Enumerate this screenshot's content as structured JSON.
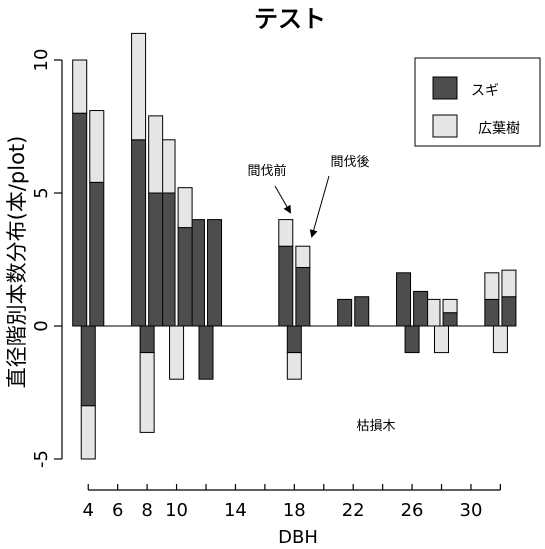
{
  "chart_data": {
    "type": "bar",
    "title": "テスト",
    "ylabel": "直径階別本数分布(本/plot)",
    "xlabel": "DBH",
    "ylim": [
      -5,
      10
    ],
    "yticks": [
      -5,
      0,
      5,
      10
    ],
    "xlim": [
      3.1,
      33.4
    ],
    "xticks": [
      4,
      6,
      8,
      10,
      14,
      18,
      22,
      26,
      30
    ],
    "xtick_marks": [
      4,
      6,
      8,
      10,
      12,
      14,
      16,
      18,
      20,
      22,
      24,
      26,
      28,
      30,
      32
    ],
    "colors": {
      "sugi": "#4d4d4d",
      "broadleaf": "#e6e6e6"
    },
    "legend": {
      "position": "top-right",
      "entries": [
        {
          "label": "スギ",
          "color": "#4d4d4d"
        },
        {
          "label": "広葉樹",
          "color": "#e6e6e6"
        }
      ]
    },
    "annotations": {
      "before": "間伐前",
      "after": "間伐後",
      "dead": "枯損木"
    },
    "series": [
      {
        "name": "間伐前",
        "x": [
          4,
          6,
          8,
          10,
          12,
          14,
          16,
          18,
          20,
          22,
          24,
          26,
          28,
          30,
          32
        ],
        "sugi": [
          8,
          0,
          7,
          5,
          4,
          0,
          0,
          3,
          0,
          1,
          0,
          2,
          0,
          0,
          1
        ],
        "broadleaf": [
          2,
          0,
          4,
          2,
          0,
          0,
          0,
          1,
          0,
          0,
          0,
          0,
          1,
          0,
          1
        ]
      },
      {
        "name": "間伐後",
        "x": [
          4,
          6,
          8,
          10,
          12,
          14,
          16,
          18,
          20,
          22,
          24,
          26,
          28,
          30,
          32
        ],
        "sugi": [
          5.4,
          0,
          5,
          3.7,
          4,
          0,
          0,
          2.2,
          0,
          1.1,
          0,
          1.3,
          0.5,
          0,
          1.1
        ],
        "broadleaf": [
          2.7,
          0,
          2.9,
          1.5,
          0,
          0,
          0,
          0.8,
          0,
          0,
          0,
          0,
          0.5,
          0,
          1
        ]
      },
      {
        "name": "枯損木",
        "x": [
          4,
          6,
          8,
          10,
          12,
          14,
          16,
          18,
          20,
          22,
          24,
          26,
          28,
          30,
          32
        ],
        "sugi": [
          -3,
          0,
          -1,
          0,
          -2,
          0,
          0,
          -1,
          0,
          0,
          0,
          -1,
          0,
          0,
          0
        ],
        "broadleaf": [
          -2,
          0,
          -3,
          -2,
          0,
          0,
          0,
          -1,
          0,
          0,
          0,
          0,
          -1,
          0,
          -1
        ]
      }
    ]
  }
}
